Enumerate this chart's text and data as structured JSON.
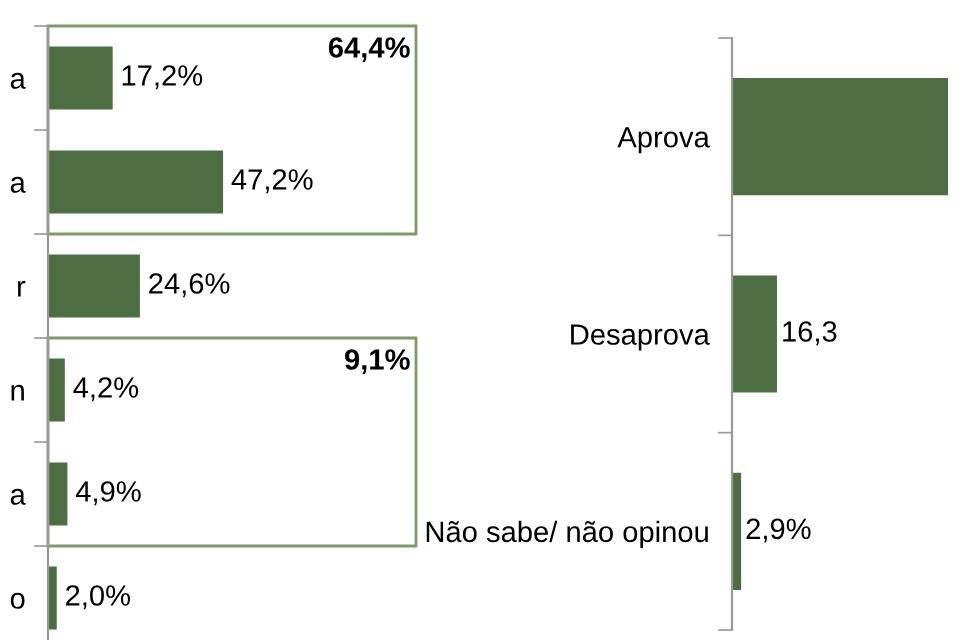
{
  "chart_data": [
    {
      "type": "bar",
      "orientation": "horizontal",
      "categories": [
        "a",
        "a",
        "r",
        "n",
        "a",
        "o"
      ],
      "values": [
        17.2,
        47.2,
        24.6,
        4.2,
        4.9,
        2.0
      ],
      "color": "#4d6e43",
      "value_labels": [
        "17,2%",
        "47,2%",
        "24,6%",
        "4,2%",
        "4,9%",
        "2,0%"
      ],
      "xlim": [
        0,
        100
      ],
      "tick_labels": "y",
      "grid": false,
      "annotations": [
        "64,4%",
        "9,1%"
      ]
    },
    {
      "type": "bar",
      "orientation": "horizontal",
      "categories": [
        "Aprova",
        "Desaprova",
        "Não sabe/ não opinou"
      ],
      "values": [
        80.8,
        16.3,
        2.9
      ],
      "color": "#4d6e43",
      "value_labels": [
        null,
        "16,3",
        "2,9%"
      ],
      "tick_labels": "y",
      "grid": false
    }
  ]
}
